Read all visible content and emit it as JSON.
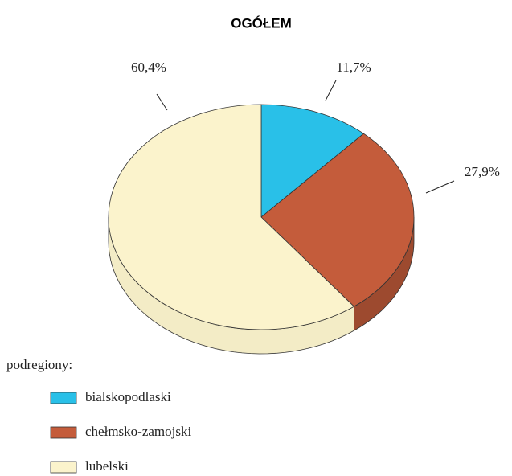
{
  "chart_data": {
    "type": "pie",
    "title": "OGÓŁEM",
    "categories": [
      "bialskopodlaski",
      "chełmsko-zamojski",
      "lubelski"
    ],
    "values": [
      11.7,
      27.9,
      60.4
    ],
    "value_labels": [
      "11,7%",
      "27,9%",
      "60,4%"
    ],
    "colors": [
      "#29c0e8",
      "#c45c3b",
      "#fbf3cc"
    ],
    "legend_title": "podregiony:",
    "legend": "bottom-left"
  }
}
